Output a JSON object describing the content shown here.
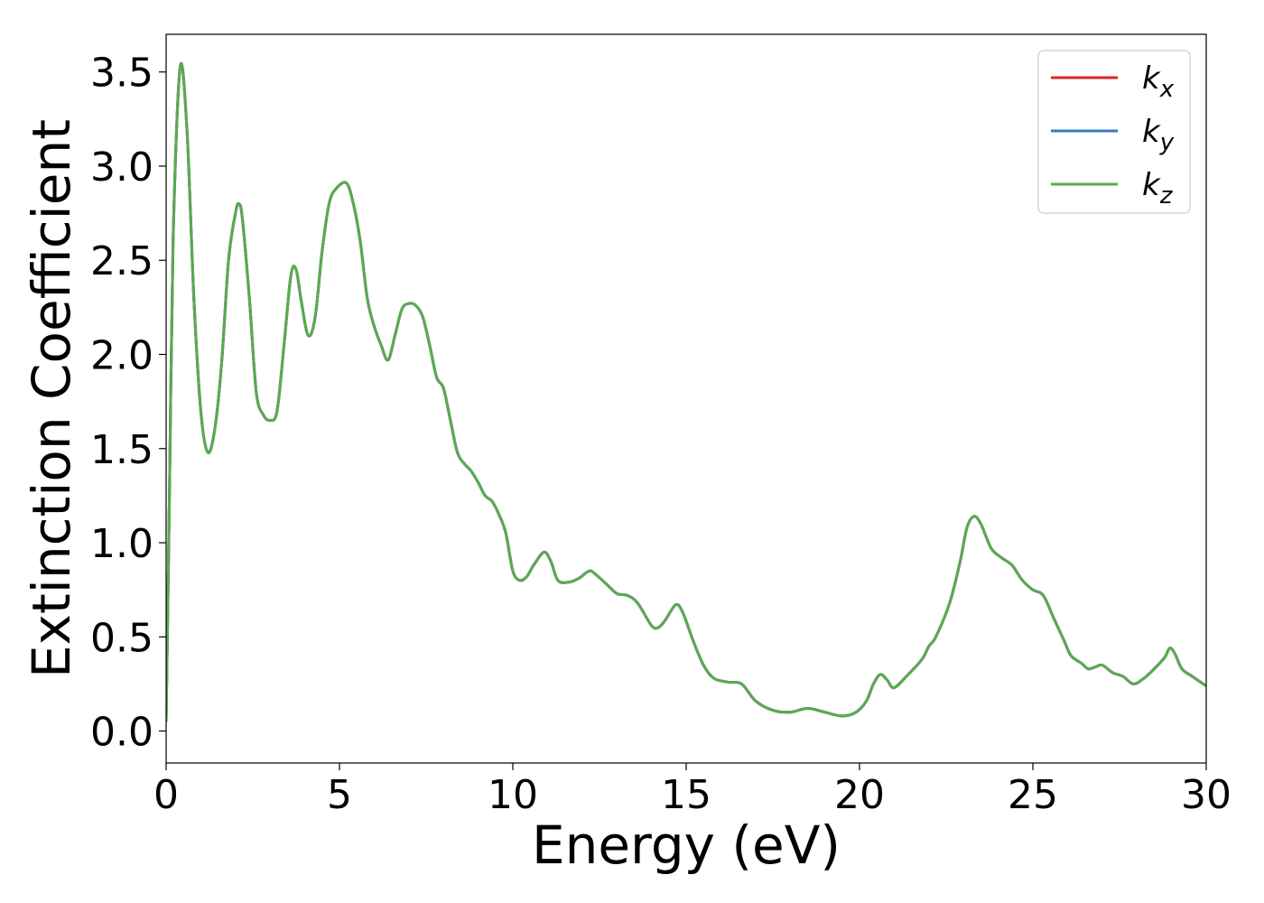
{
  "chart_data": {
    "type": "line",
    "title": "",
    "xlabel": "Energy (eV)",
    "ylabel": "Extinction Coefficient",
    "xlim": [
      0,
      30
    ],
    "ylim": [
      -0.17,
      3.7
    ],
    "xticks": [
      0,
      5,
      10,
      15,
      20,
      25,
      30
    ],
    "xtick_labels": [
      "0",
      "5",
      "10",
      "15",
      "20",
      "25",
      "30"
    ],
    "yticks": [
      0.0,
      0.5,
      1.0,
      1.5,
      2.0,
      2.5,
      3.0,
      3.5
    ],
    "ytick_labels": [
      "0.0",
      "0.5",
      "1.0",
      "1.5",
      "2.0",
      "2.5",
      "3.0",
      "3.5"
    ],
    "grid": false,
    "legend_position": "top-right",
    "series": [
      {
        "name": "k_x",
        "legend_base": "k",
        "legend_sub": "x",
        "color": "#d62728",
        "x": [
          0,
          0.1,
          0.2,
          0.4,
          0.6,
          0.8,
          1.0,
          1.2,
          1.4,
          1.6,
          1.8,
          2.0,
          2.1,
          2.2,
          2.4,
          2.6,
          2.8,
          3.0,
          3.2,
          3.4,
          3.6,
          3.75,
          3.9,
          4.1,
          4.3,
          4.5,
          4.7,
          4.9,
          5.2,
          5.4,
          5.6,
          5.8,
          6.0,
          6.2,
          6.4,
          6.6,
          6.8,
          7.0,
          7.2,
          7.4,
          7.6,
          7.8,
          8.0,
          8.2,
          8.4,
          8.6,
          8.8,
          9.0,
          9.2,
          9.4,
          9.6,
          9.8,
          10.0,
          10.2,
          10.4,
          10.6,
          10.9,
          11.1,
          11.3,
          11.6,
          11.9,
          12.2,
          12.4,
          12.7,
          13.0,
          13.3,
          13.6,
          14.0,
          14.2,
          14.4,
          14.7,
          14.9,
          15.2,
          15.5,
          15.8,
          16.2,
          16.6,
          17.0,
          17.5,
          18.0,
          18.5,
          19.0,
          19.5,
          19.9,
          20.2,
          20.4,
          20.6,
          20.8,
          21.0,
          21.4,
          21.8,
          22.0,
          22.2,
          22.6,
          22.9,
          23.1,
          23.3,
          23.5,
          23.8,
          24.1,
          24.4,
          24.7,
          25.0,
          25.3,
          25.6,
          25.9,
          26.1,
          26.4,
          26.6,
          26.8,
          27.0,
          27.3,
          27.6,
          27.9,
          28.2,
          28.5,
          28.8,
          28.95,
          29.1,
          29.3,
          29.6,
          30.0
        ],
        "y": [
          0.05,
          1.3,
          2.6,
          3.52,
          3.2,
          2.3,
          1.7,
          1.48,
          1.6,
          1.95,
          2.5,
          2.75,
          2.8,
          2.72,
          2.3,
          1.8,
          1.68,
          1.65,
          1.7,
          2.05,
          2.42,
          2.45,
          2.28,
          2.1,
          2.2,
          2.55,
          2.8,
          2.88,
          2.91,
          2.8,
          2.6,
          2.3,
          2.15,
          2.05,
          1.97,
          2.1,
          2.24,
          2.27,
          2.26,
          2.2,
          2.05,
          1.88,
          1.82,
          1.65,
          1.48,
          1.42,
          1.38,
          1.32,
          1.25,
          1.22,
          1.15,
          1.05,
          0.85,
          0.8,
          0.82,
          0.88,
          0.95,
          0.9,
          0.8,
          0.79,
          0.81,
          0.85,
          0.83,
          0.78,
          0.73,
          0.72,
          0.68,
          0.56,
          0.55,
          0.59,
          0.67,
          0.63,
          0.48,
          0.35,
          0.28,
          0.26,
          0.25,
          0.16,
          0.11,
          0.1,
          0.12,
          0.1,
          0.08,
          0.1,
          0.16,
          0.25,
          0.3,
          0.27,
          0.23,
          0.3,
          0.38,
          0.45,
          0.5,
          0.68,
          0.9,
          1.08,
          1.14,
          1.1,
          0.97,
          0.92,
          0.88,
          0.8,
          0.75,
          0.72,
          0.6,
          0.48,
          0.4,
          0.36,
          0.33,
          0.34,
          0.35,
          0.31,
          0.29,
          0.25,
          0.28,
          0.33,
          0.39,
          0.44,
          0.41,
          0.33,
          0.29,
          0.24
        ]
      },
      {
        "name": "k_y",
        "legend_base": "k",
        "legend_sub": "y",
        "color": "#3a7bbf",
        "x": [
          0,
          0.1,
          0.2,
          0.4,
          0.6,
          0.8,
          1.0,
          1.2,
          1.4,
          1.6,
          1.8,
          2.0,
          2.1,
          2.2,
          2.4,
          2.6,
          2.8,
          3.0,
          3.2,
          3.4,
          3.6,
          3.75,
          3.9,
          4.1,
          4.3,
          4.5,
          4.7,
          4.9,
          5.2,
          5.4,
          5.6,
          5.8,
          6.0,
          6.2,
          6.4,
          6.6,
          6.8,
          7.0,
          7.2,
          7.4,
          7.6,
          7.8,
          8.0,
          8.2,
          8.4,
          8.6,
          8.8,
          9.0,
          9.2,
          9.4,
          9.6,
          9.8,
          10.0,
          10.2,
          10.4,
          10.6,
          10.9,
          11.1,
          11.3,
          11.6,
          11.9,
          12.2,
          12.4,
          12.7,
          13.0,
          13.3,
          13.6,
          14.0,
          14.2,
          14.4,
          14.7,
          14.9,
          15.2,
          15.5,
          15.8,
          16.2,
          16.6,
          17.0,
          17.5,
          18.0,
          18.5,
          19.0,
          19.5,
          19.9,
          20.2,
          20.4,
          20.6,
          20.8,
          21.0,
          21.4,
          21.8,
          22.0,
          22.2,
          22.6,
          22.9,
          23.1,
          23.3,
          23.5,
          23.8,
          24.1,
          24.4,
          24.7,
          25.0,
          25.3,
          25.6,
          25.9,
          26.1,
          26.4,
          26.6,
          26.8,
          27.0,
          27.3,
          27.6,
          27.9,
          28.2,
          28.5,
          28.8,
          28.95,
          29.1,
          29.3,
          29.6,
          30.0
        ],
        "y": [
          0.05,
          1.3,
          2.6,
          3.52,
          3.2,
          2.3,
          1.7,
          1.48,
          1.6,
          1.95,
          2.5,
          2.75,
          2.8,
          2.72,
          2.3,
          1.8,
          1.68,
          1.65,
          1.7,
          2.05,
          2.42,
          2.45,
          2.28,
          2.1,
          2.2,
          2.55,
          2.8,
          2.88,
          2.91,
          2.8,
          2.6,
          2.3,
          2.15,
          2.05,
          1.97,
          2.1,
          2.24,
          2.27,
          2.26,
          2.2,
          2.05,
          1.88,
          1.82,
          1.65,
          1.48,
          1.42,
          1.38,
          1.32,
          1.25,
          1.22,
          1.15,
          1.05,
          0.85,
          0.8,
          0.82,
          0.88,
          0.95,
          0.9,
          0.8,
          0.79,
          0.81,
          0.85,
          0.83,
          0.78,
          0.73,
          0.72,
          0.68,
          0.56,
          0.55,
          0.59,
          0.67,
          0.63,
          0.48,
          0.35,
          0.28,
          0.26,
          0.25,
          0.16,
          0.11,
          0.1,
          0.12,
          0.1,
          0.08,
          0.1,
          0.16,
          0.25,
          0.3,
          0.27,
          0.23,
          0.3,
          0.38,
          0.45,
          0.5,
          0.68,
          0.9,
          1.08,
          1.14,
          1.1,
          0.97,
          0.92,
          0.88,
          0.8,
          0.75,
          0.72,
          0.6,
          0.48,
          0.4,
          0.36,
          0.33,
          0.34,
          0.35,
          0.31,
          0.29,
          0.25,
          0.28,
          0.33,
          0.39,
          0.44,
          0.41,
          0.33,
          0.29,
          0.24
        ]
      },
      {
        "name": "k_z",
        "legend_base": "k",
        "legend_sub": "z",
        "color": "#5aaa50",
        "x": [
          0,
          0.1,
          0.2,
          0.4,
          0.6,
          0.8,
          1.0,
          1.2,
          1.4,
          1.6,
          1.8,
          2.0,
          2.1,
          2.2,
          2.4,
          2.6,
          2.8,
          3.0,
          3.2,
          3.4,
          3.6,
          3.75,
          3.9,
          4.1,
          4.3,
          4.5,
          4.7,
          4.9,
          5.2,
          5.4,
          5.6,
          5.8,
          6.0,
          6.2,
          6.4,
          6.6,
          6.8,
          7.0,
          7.2,
          7.4,
          7.6,
          7.8,
          8.0,
          8.2,
          8.4,
          8.6,
          8.8,
          9.0,
          9.2,
          9.4,
          9.6,
          9.8,
          10.0,
          10.2,
          10.4,
          10.6,
          10.9,
          11.1,
          11.3,
          11.6,
          11.9,
          12.2,
          12.4,
          12.7,
          13.0,
          13.3,
          13.6,
          14.0,
          14.2,
          14.4,
          14.7,
          14.9,
          15.2,
          15.5,
          15.8,
          16.2,
          16.6,
          17.0,
          17.5,
          18.0,
          18.5,
          19.0,
          19.5,
          19.9,
          20.2,
          20.4,
          20.6,
          20.8,
          21.0,
          21.4,
          21.8,
          22.0,
          22.2,
          22.6,
          22.9,
          23.1,
          23.3,
          23.5,
          23.8,
          24.1,
          24.4,
          24.7,
          25.0,
          25.3,
          25.6,
          25.9,
          26.1,
          26.4,
          26.6,
          26.8,
          27.0,
          27.3,
          27.6,
          27.9,
          28.2,
          28.5,
          28.8,
          28.95,
          29.1,
          29.3,
          29.6,
          30.0
        ],
        "y": [
          0.05,
          1.3,
          2.6,
          3.52,
          3.2,
          2.3,
          1.7,
          1.48,
          1.6,
          1.95,
          2.5,
          2.75,
          2.8,
          2.72,
          2.3,
          1.8,
          1.68,
          1.65,
          1.7,
          2.05,
          2.42,
          2.45,
          2.28,
          2.1,
          2.2,
          2.55,
          2.8,
          2.88,
          2.91,
          2.8,
          2.6,
          2.3,
          2.15,
          2.05,
          1.97,
          2.1,
          2.24,
          2.27,
          2.26,
          2.2,
          2.05,
          1.88,
          1.82,
          1.65,
          1.48,
          1.42,
          1.38,
          1.32,
          1.25,
          1.22,
          1.15,
          1.05,
          0.85,
          0.8,
          0.82,
          0.88,
          0.95,
          0.9,
          0.8,
          0.79,
          0.81,
          0.85,
          0.83,
          0.78,
          0.73,
          0.72,
          0.68,
          0.56,
          0.55,
          0.59,
          0.67,
          0.63,
          0.48,
          0.35,
          0.28,
          0.26,
          0.25,
          0.16,
          0.11,
          0.1,
          0.12,
          0.1,
          0.08,
          0.1,
          0.16,
          0.25,
          0.3,
          0.27,
          0.23,
          0.3,
          0.38,
          0.45,
          0.5,
          0.68,
          0.9,
          1.08,
          1.14,
          1.1,
          0.97,
          0.92,
          0.88,
          0.8,
          0.75,
          0.72,
          0.6,
          0.48,
          0.4,
          0.36,
          0.33,
          0.34,
          0.35,
          0.31,
          0.29,
          0.25,
          0.28,
          0.33,
          0.39,
          0.44,
          0.41,
          0.33,
          0.29,
          0.24
        ]
      }
    ]
  }
}
